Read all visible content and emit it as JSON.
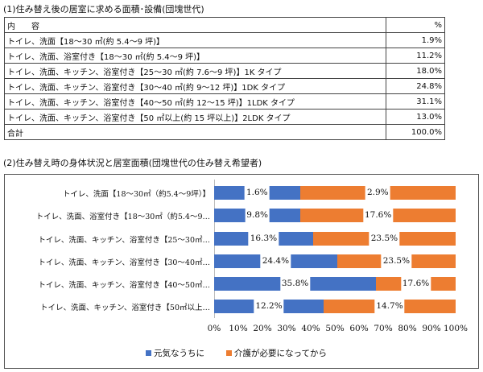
{
  "section1": {
    "title": "(1)住み替え後の居室に求める面積･設備(団塊世代)",
    "header": [
      "内　　容",
      "%"
    ],
    "rows": [
      [
        "トイレ、洗面【18～30 ㎡(約 5.4～9 坪)】",
        "1.9%"
      ],
      [
        "トイレ、洗面、浴室付き【18～30 ㎡(約 5.4～9 坪)】",
        "11.2%"
      ],
      [
        "トイレ、洗面、キッチン、浴室付き【25～30 ㎡(約 7.6～9 坪)】1K タイプ",
        "18.0%"
      ],
      [
        "トイレ、洗面、キッチン、浴室付き【30～40 ㎡(約 9～12 坪)】1DK タイプ",
        "24.8%"
      ],
      [
        "トイレ、洗面、キッチン、浴室付き【40～50 ㎡(約 12～15 坪)】1LDK タイプ",
        "31.1%"
      ],
      [
        "トイレ、洗面、キッチン、浴室付き【50 ㎡以上(約 15 坪以上)】2LDK タイプ",
        "13.0%"
      ],
      [
        "合計",
        "100.0%"
      ]
    ]
  },
  "section2": {
    "title": "(2)住み替え時の身体状況と居室面積(団塊世代の住み替え希望者)"
  },
  "chart_data": {
    "type": "bar",
    "stacked": "100%",
    "orientation": "horizontal",
    "categories": [
      "トイレ、洗面【18～30㎡（約5.4～9坪）】",
      "トイレ、洗面、浴室付き【18～30㎡（約5.4～9…",
      "トイレ、洗面、キッチン、浴室付き【25～30㎡…",
      "トイレ、洗面、キッチン、浴室付き【30～40㎡…",
      "トイレ、洗面、キッチン、浴室付き【40～50㎡…",
      "トイレ、洗面、キッチン、浴室付き【50㎡以上…"
    ],
    "series": [
      {
        "name": "元気なうちに",
        "color": "#4472c4",
        "values": [
          1.6,
          9.8,
          16.3,
          24.4,
          35.8,
          12.2
        ]
      },
      {
        "name": "介護が必要になってから",
        "color": "#ed7d31",
        "values": [
          2.9,
          17.6,
          23.5,
          23.5,
          17.6,
          14.7
        ]
      }
    ],
    "value_labels": [
      [
        "1.6%",
        "2.9%"
      ],
      [
        "9.8%",
        "17.6%"
      ],
      [
        "16.3%",
        "23.5%"
      ],
      [
        "24.4%",
        "23.5%"
      ],
      [
        "35.8%",
        "17.6%"
      ],
      [
        "12.2%",
        "14.7%"
      ]
    ],
    "xticks": [
      "0%",
      "10%",
      "20%",
      "30%",
      "40%",
      "50%",
      "60%",
      "70%",
      "80%",
      "90%",
      "100%"
    ],
    "xlim": [
      0,
      100
    ],
    "legend": "bottom",
    "grid": false
  }
}
